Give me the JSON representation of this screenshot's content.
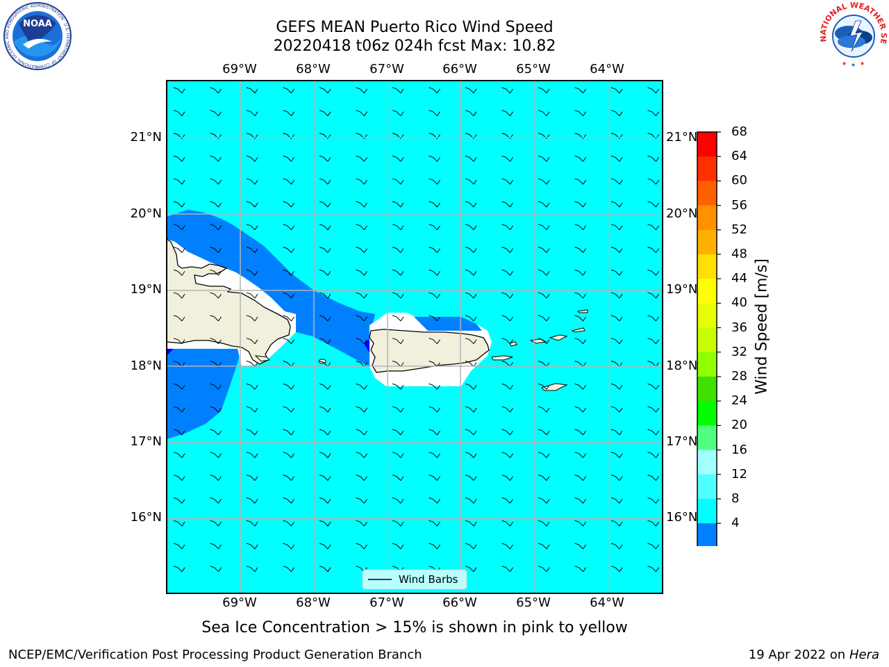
{
  "header": {
    "title_line1": "GEFS MEAN Puerto Rico Wind Speed",
    "title_line2": "20220418 t06z 024h fcst   Max: 10.82"
  },
  "map": {
    "lon_labels": [
      "69°W",
      "68°W",
      "67°W",
      "66°W",
      "65°W",
      "64°W"
    ],
    "lat_labels": [
      "21°N",
      "20°N",
      "19°N",
      "18°N",
      "17°N",
      "16°N"
    ],
    "lon_range": [
      -70.0,
      -63.25
    ],
    "lat_range": [
      15.0,
      21.75
    ],
    "gridlines": true,
    "colors": {
      "ocean": "#00ffff",
      "wind_4_8": "#0080ff",
      "wind_below_4": "#0000ff",
      "land": "#f0f0dc",
      "grid": "#b4b4b4"
    },
    "wind_barb_direction": "east"
  },
  "legend": {
    "label": "Wind Barbs",
    "position": "bottom-center"
  },
  "colorbar": {
    "label": "Wind Speed [m/s]",
    "ticks": [
      "68",
      "64",
      "60",
      "56",
      "52",
      "48",
      "44",
      "40",
      "36",
      "32",
      "28",
      "24",
      "20",
      "16",
      "12",
      "8",
      "4"
    ],
    "colors_top_to_bottom": [
      "#ff0000",
      "#ff3000",
      "#ff6000",
      "#ff9000",
      "#ffb000",
      "#ffe000",
      "#ffff00",
      "#e8ff00",
      "#c8ff00",
      "#90ff00",
      "#40e000",
      "#00ff00",
      "#50ff80",
      "#a0ffff",
      "#50ffff",
      "#00ffff",
      "#0080ff"
    ],
    "extend_color": "#0000ff"
  },
  "footer": {
    "note": "Sea Ice Concentration > 15% is shown in pink to yellow",
    "credit": "NCEP/EMC/Verification Post Processing Product Generation Branch",
    "date": "19 Apr 2022 on",
    "machine": "Hera"
  },
  "logos": {
    "noaa_text": "NOAA",
    "noaa_ring": "NATIONAL OCEANIC AND ATMOSPHERIC ADMINISTRATION · U.S. DEPARTMENT OF COMMERCE",
    "nws_ring": "NATIONAL WEATHER SERVICE"
  }
}
